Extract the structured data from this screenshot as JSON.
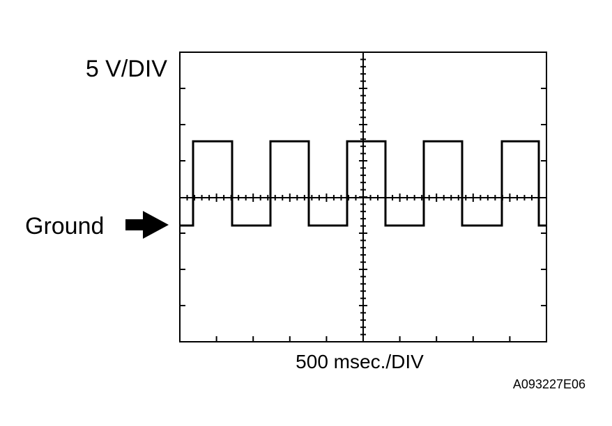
{
  "vertical_scale": "5 V/DIV",
  "ground_label": "Ground",
  "horizontal_scale": "500 msec./DIV",
  "figure_id": "A093227E06"
}
